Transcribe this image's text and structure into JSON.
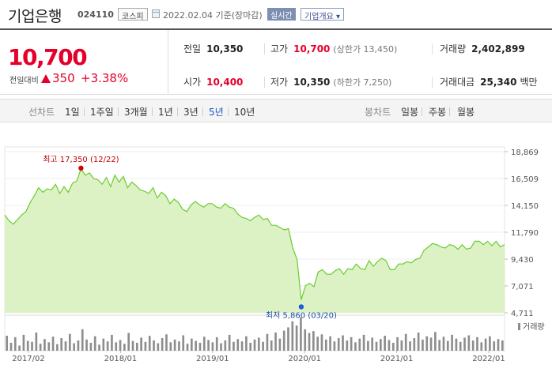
{
  "header": {
    "title": "기업은행",
    "code": "024110",
    "market": "코스피",
    "date": "2022.02.04  기준(장마감)",
    "realtime": "실시간",
    "overview": "기업개요 ▾"
  },
  "quote": {
    "price": "10,700",
    "change_label": "전일대비",
    "change": "350",
    "change_pct": "+3.38%",
    "prev_label": "전일",
    "prev": "10,350",
    "high_label": "고가",
    "high": "10,700",
    "high_limit": "(상한가 13,450)",
    "volume_label": "거래량",
    "volume": "2,402,899",
    "open_label": "시가",
    "open": "10,400",
    "low_label": "저가",
    "low": "10,350",
    "low_limit": "(하한가 7,250)",
    "amount_label": "거래대금",
    "amount": "25,340",
    "amount_unit": "백만"
  },
  "tabs": {
    "line_chart": "선차트",
    "day1": "1일",
    "week1": "1주일",
    "month3": "3개월",
    "year1": "1년",
    "year3": "3년",
    "year5": "5년",
    "year10": "10년",
    "candle_chart": "봉차트",
    "daily": "일봉",
    "weekly": "주봉",
    "monthly": "월봉"
  },
  "colors": {
    "up": "#e4002b",
    "area": "#ddf2c4",
    "line": "#69cc30",
    "active_tab": "#1a56c6"
  },
  "chart_data": {
    "type": "area",
    "x_ticks": [
      "2017/02",
      "2018/01",
      "2019/01",
      "2020/01",
      "2021/01",
      "2022/01"
    ],
    "y_ticks": [
      "18,869",
      "16,509",
      "14,150",
      "11,790",
      "9,430",
      "7,071",
      "4,711"
    ],
    "ylim": [
      4711,
      18869
    ],
    "legend": "거래량",
    "annotations": {
      "high_label": "최고 17,350 (12/22)",
      "high_value": 17350,
      "high_date": "2017/12",
      "low_label": "최저 5,860 (03/20)",
      "low_value": 5860,
      "low_date": "2020/03"
    },
    "series": [
      {
        "values": [
          13300,
          12800,
          12500,
          12900,
          13300,
          13600,
          14400,
          15000,
          15700,
          15300,
          15600,
          15500,
          16000,
          15200,
          15800,
          15300,
          16100,
          16300,
          17350,
          16800,
          17000,
          16500,
          16400,
          16000,
          16600,
          15800,
          16800,
          16200,
          16700,
          15700,
          16200,
          15900,
          15500,
          15400,
          15200,
          15700,
          14800,
          15300,
          15000,
          14300,
          14700,
          14400,
          13800,
          13600,
          14200,
          14500,
          14200,
          14000,
          14300,
          14300,
          14000,
          13900,
          14300,
          14000,
          13900,
          13400,
          13100,
          13000,
          12800,
          13100,
          13300,
          12900,
          13000,
          12400,
          12400,
          12200,
          12000,
          12100,
          10400,
          9400,
          5860,
          7100,
          7300,
          7000,
          8300,
          8500,
          8100,
          8100,
          8400,
          8600,
          8100,
          8600,
          8500,
          9000,
          8600,
          8500,
          9300,
          8800,
          9200,
          9500,
          9300,
          8500,
          8500,
          9000,
          9000,
          9200,
          9100,
          9400,
          9500,
          10200,
          10500,
          10800,
          10700,
          10500,
          10400,
          10700,
          10600,
          10300,
          10700,
          10300,
          10400,
          11000,
          11000,
          10700,
          11000,
          10600,
          11000,
          10500,
          10700
        ]
      }
    ],
    "volume": [
      3.2,
      1.7,
      2.9,
      1.1,
      3.4,
      2.1,
      1.9,
      3.9,
      1.5,
      2.5,
      1.8,
      3.0,
      1.4,
      2.7,
      2.0,
      3.6,
      1.6,
      2.2,
      4.6,
      2.4,
      1.7,
      3.1,
      1.3,
      2.6,
      2.0,
      3.4,
      1.8,
      2.3,
      1.5,
      3.8,
      2.1,
      1.7,
      2.8,
      1.9,
      3.2,
      2.2,
      1.6,
      2.7,
      3.5,
      1.8,
      2.4,
      2.0,
      3.3,
      1.5,
      2.6,
      2.1,
      1.7,
      3.0,
      2.3,
      1.8,
      2.9,
      1.6,
      2.2,
      3.4,
      1.9,
      2.5,
      2.0,
      3.1,
      1.7,
      2.4,
      2.8,
      1.9,
      3.6,
      2.2,
      3.9,
      2.6,
      4.3,
      5.0,
      6.3,
      5.4,
      7.1,
      4.6,
      3.8,
      4.2,
      3.0,
      3.5,
      2.4,
      3.1,
      2.0,
      2.7,
      3.3,
      2.2,
      2.9,
      1.8,
      2.6,
      3.4,
      2.1,
      2.8,
      1.9,
      2.5,
      3.2,
      2.3,
      1.7,
      2.9,
      2.2,
      3.6,
      2.0,
      2.7,
      3.9,
      2.4,
      3.1,
      2.8,
      4.0,
      2.3,
      3.0,
      2.1,
      3.4,
      2.6,
      1.9,
      2.8,
      3.3,
      2.2,
      2.9,
      1.8,
      2.6,
      3.1,
      2.0,
      2.5,
      2.2
    ]
  }
}
